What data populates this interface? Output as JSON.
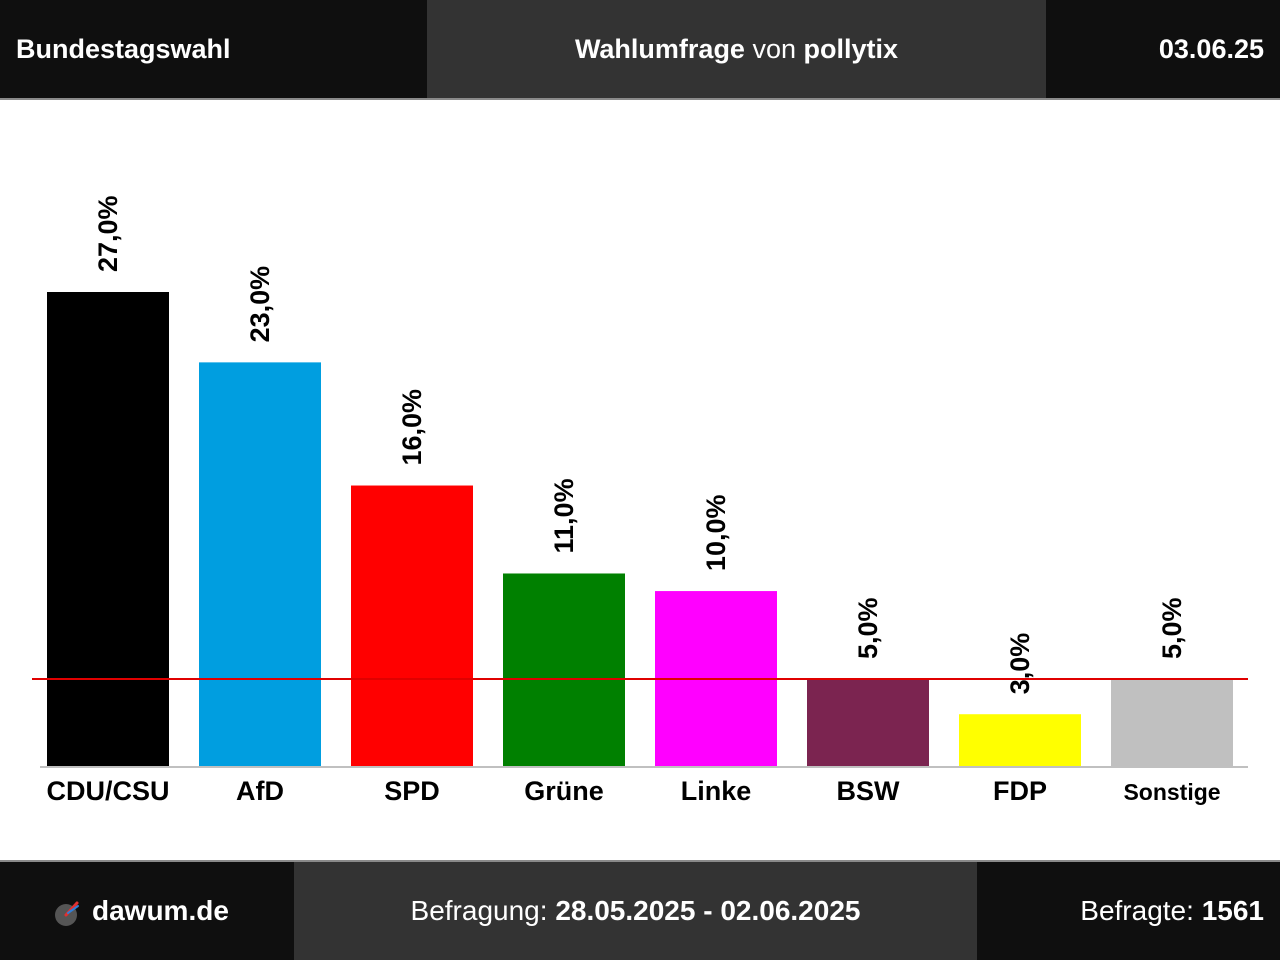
{
  "header": {
    "election": "Bundestagswahl",
    "title_main": "Wahlumfrage",
    "title_connector": "von",
    "institute": "pollytix",
    "date": "03.06.25"
  },
  "footer": {
    "site": "dawum.de",
    "period_label": "Befragung:",
    "period_value": "28.05.2025 - 02.06.2025",
    "sample_label": "Befragte:",
    "sample_value": "1561"
  },
  "chart_data": {
    "type": "bar",
    "categories": [
      "CDU/CSU",
      "AfD",
      "SPD",
      "Grüne",
      "Linke",
      "BSW",
      "FDP",
      "Sonstige"
    ],
    "values": [
      27.0,
      23.0,
      16.0,
      11.0,
      10.0,
      5.0,
      3.0,
      5.0
    ],
    "value_labels": [
      "27,0%",
      "23,0%",
      "16,0%",
      "11,0%",
      "10,0%",
      "5,0%",
      "3,0%",
      "5,0%"
    ],
    "colors": [
      "#000000",
      "#009ee0",
      "#ff0000",
      "#008000",
      "#ff00ff",
      "#7b2450",
      "#ffff00",
      "#c0c0c0"
    ],
    "threshold": 5.0,
    "threshold_color": "#e00000",
    "ylim": [
      0,
      27.0
    ],
    "grid": false,
    "legend": "none"
  }
}
